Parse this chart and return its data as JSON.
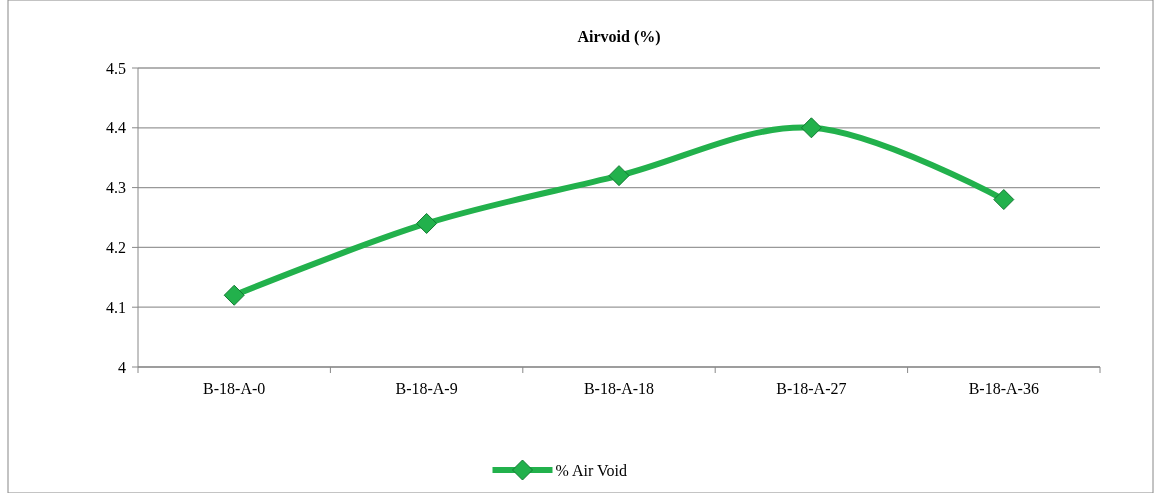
{
  "chart_data": {
    "type": "line",
    "title": "Airvoid (%)",
    "categories": [
      "B-18-A-0",
      "B-18-A-9",
      "B-18-A-18",
      "B-18-A-27",
      "B-18-A-36"
    ],
    "series": [
      {
        "name": "% Air Void",
        "color": "#22b14c",
        "values": [
          4.12,
          4.24,
          4.32,
          4.4,
          4.28
        ]
      }
    ],
    "ylim": [
      4,
      4.5
    ],
    "yticks": [
      4,
      4.1,
      4.2,
      4.3,
      4.4,
      4.5
    ],
    "grid": "y",
    "legend": "bottom",
    "marker": "diamond",
    "line_style": "solid"
  }
}
